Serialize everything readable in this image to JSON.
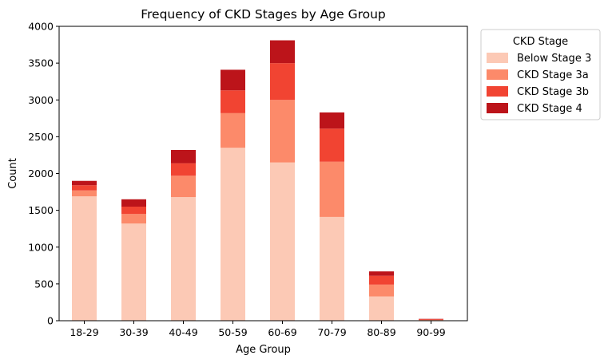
{
  "chart_data": {
    "type": "bar",
    "stacked": true,
    "title": "Frequency of CKD Stages by Age Group",
    "xlabel": "Age Group",
    "ylabel": "Count",
    "ylim": [
      0,
      4000
    ],
    "yticks": [
      0,
      500,
      1000,
      1500,
      2000,
      2500,
      3000,
      3500,
      4000
    ],
    "grid": false,
    "legend": {
      "title": "CKD Stage",
      "placement": "outside-top-right"
    },
    "categories": [
      "18-29",
      "30-39",
      "40-49",
      "50-59",
      "60-69",
      "70-79",
      "80-89",
      "90-99"
    ],
    "series": [
      {
        "name": "Below Stage 3",
        "color": "#fcc9b5",
        "values": [
          1690,
          1320,
          1680,
          2350,
          2150,
          1410,
          330,
          5
        ]
      },
      {
        "name": "CKD Stage 3a",
        "color": "#fc8a6a",
        "values": [
          80,
          130,
          290,
          470,
          850,
          750,
          160,
          5
        ]
      },
      {
        "name": "CKD Stage 3b",
        "color": "#f14432",
        "values": [
          70,
          100,
          170,
          310,
          500,
          450,
          120,
          10
        ]
      },
      {
        "name": "CKD Stage 4",
        "color": "#bc141a",
        "values": [
          60,
          100,
          180,
          280,
          310,
          220,
          60,
          5
        ]
      }
    ]
  }
}
